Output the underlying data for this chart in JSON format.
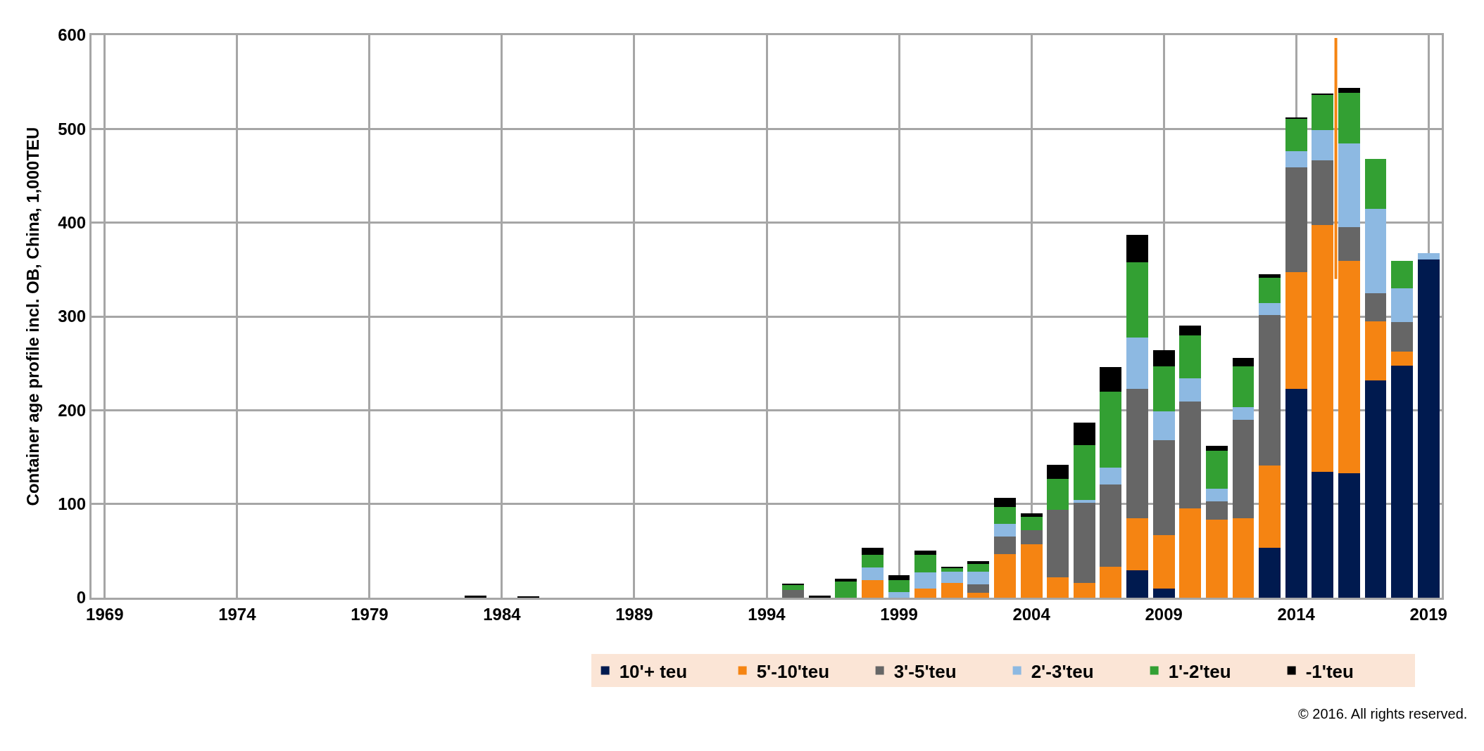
{
  "chart_data": {
    "type": "bar",
    "stacked": true,
    "ylabel": "Container age profile incl. OB, China, 1,000TEU",
    "x": [
      1983,
      1985,
      1995,
      1996,
      1997,
      1998,
      1999,
      2000,
      2001,
      2002,
      2003,
      2004,
      2005,
      2006,
      2007,
      2008,
      2009,
      2010,
      2011,
      2012,
      2013,
      2014,
      2015,
      2016,
      2017,
      2018,
      2019
    ],
    "series": [
      {
        "name": "10'+ teu",
        "color": "#001a4f",
        "values": [
          0,
          0,
          0,
          0,
          0,
          0,
          0,
          0,
          0,
          0,
          0,
          0,
          0,
          0,
          0,
          29,
          9.5,
          0,
          0,
          0,
          53,
          222.5,
          134,
          133,
          232,
          247.5,
          360.5
        ]
      },
      {
        "name": "5'-10'teu",
        "color": "#f58412",
        "values": [
          0,
          0,
          0,
          0,
          0,
          19,
          0,
          10,
          16,
          5,
          46.5,
          57,
          22,
          16,
          33,
          56,
          57,
          95,
          83.5,
          84.5,
          88,
          124.5,
          263.5,
          226,
          63,
          15,
          0
        ]
      },
      {
        "name": "3'-5'teu",
        "color": "#666666",
        "values": [
          0,
          0,
          8,
          0,
          0,
          0,
          0,
          0,
          0,
          9,
          19,
          15,
          72,
          85,
          88,
          138,
          101.5,
          114.5,
          19.5,
          105.5,
          160.5,
          112,
          69,
          36,
          30,
          31.5,
          0
        ]
      },
      {
        "name": "2'-3'teu",
        "color": "#8db9e2",
        "values": [
          0,
          0,
          0,
          0,
          0,
          13,
          6,
          17,
          12,
          14,
          13.5,
          0,
          0,
          3,
          18,
          54.5,
          31,
          24.5,
          13.5,
          13,
          13,
          17,
          32.5,
          89.5,
          90,
          36,
          7
        ]
      },
      {
        "name": "1'-2'teu",
        "color": "#33a033",
        "values": [
          0,
          0,
          5.5,
          0,
          17,
          14,
          13,
          19,
          4,
          8,
          18,
          14,
          33,
          58.5,
          81,
          80.5,
          48,
          45.5,
          40.5,
          43.5,
          27,
          35,
          37.5,
          54,
          53,
          29,
          0
        ]
      },
      {
        "name": "-1'teu",
        "color": "#000000",
        "values": [
          2,
          1.5,
          1,
          2,
          3,
          7,
          5,
          4,
          1,
          3,
          9.5,
          4,
          15,
          24,
          26,
          29,
          17,
          10.5,
          5,
          9.5,
          3.5,
          1.5,
          1.5,
          5,
          0,
          0,
          0
        ]
      },
      {
        "type": "line",
        "color": "#f58412",
        "x": [
          2015.5,
          2015.5
        ],
        "values": [
          340,
          597
        ]
      }
    ],
    "xlim": [
      1968.5,
      2019.5
    ],
    "xticks": [
      1969,
      1974,
      1979,
      1984,
      1989,
      1994,
      1999,
      2004,
      2009,
      2014,
      2019
    ],
    "ylim": [
      0,
      600
    ],
    "yticks": [
      0,
      100,
      200,
      300,
      400,
      500,
      600
    ],
    "grid": true,
    "legend": "bottom",
    "annotations": [
      "© 2016. All rights reserved."
    ]
  }
}
